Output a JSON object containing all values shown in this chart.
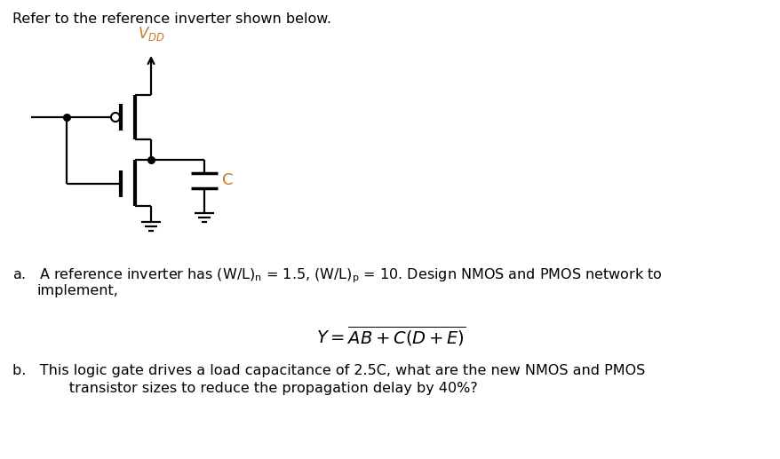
{
  "bg_color": "#ffffff",
  "text_color": "#000000",
  "orange_color": "#c87820",
  "figsize": [
    8.79,
    5.17
  ],
  "dpi": 100,
  "header": "Refer to the reference inverter shown below.",
  "vdd_label": "$V_{DD}$",
  "cap_label": "C",
  "line_a1": "a.   A reference inverter has (W/L)",
  "line_a1_sub": "n",
  "line_a1_rest": " = 1.5, (W/L)",
  "line_a1_sub2": "p",
  "line_a1_rest2": " = 10. Design NMOS and PMOS network to",
  "line_a2": "       implement,",
  "formula": "Y = \\overline{AB + C(D + E)}",
  "line_b1": "b.   This logic gate drives a load capacitance of 2.5C, what are the new NMOS and PMOS",
  "line_b2": "       transistor sizes to reduce the propagation delay by 40%?"
}
